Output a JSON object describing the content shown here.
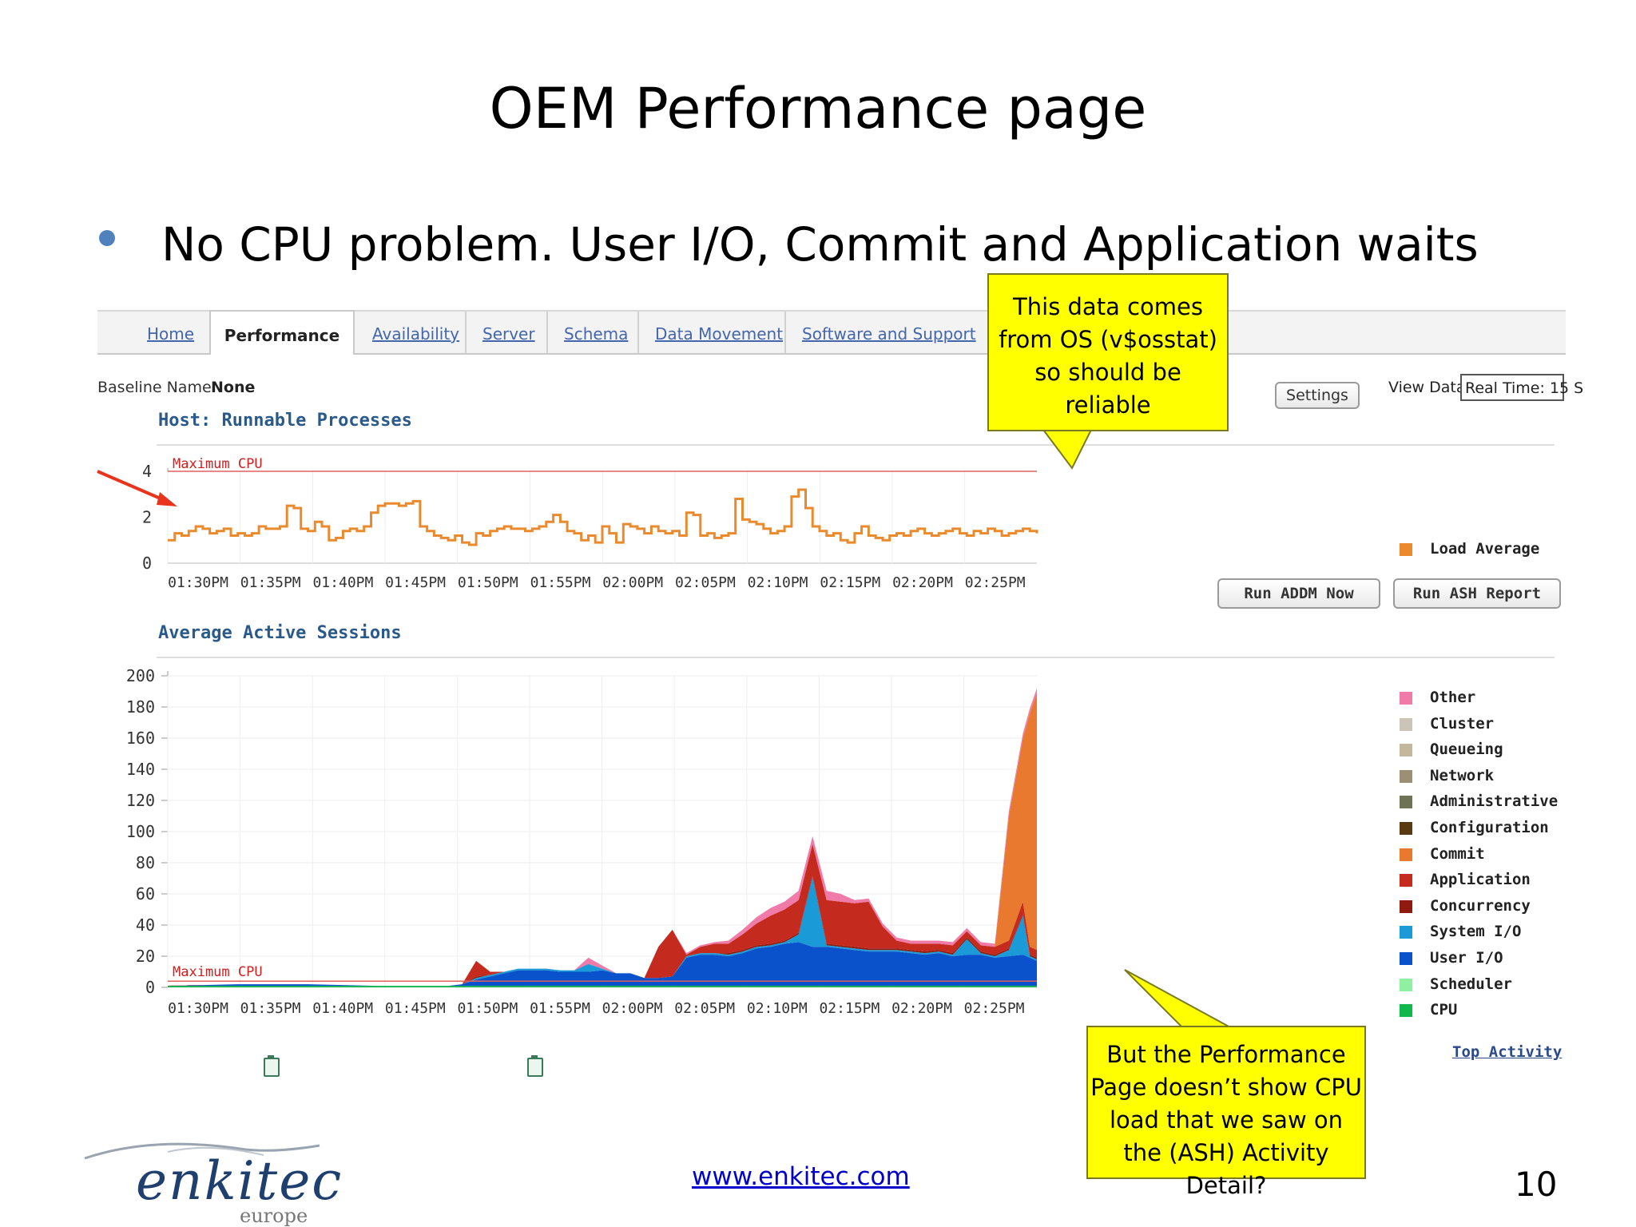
{
  "slide": {
    "title": "OEM Performance page",
    "bullet": "No CPU problem. User I/O, Commit and Application waits",
    "footer_url": "www.enkitec.com",
    "page_number": "10",
    "logo": {
      "name": "enkitec",
      "sub": "europe"
    }
  },
  "oem": {
    "tabs": [
      {
        "label": "Home",
        "active": false
      },
      {
        "label": "Performance",
        "active": true
      },
      {
        "label": "Availability",
        "active": false
      },
      {
        "label": "Server",
        "active": false
      },
      {
        "label": "Schema",
        "active": false
      },
      {
        "label": "Data Movement",
        "active": false
      },
      {
        "label": "Software and Support",
        "active": false
      }
    ],
    "baseline_label": "Baseline Name",
    "baseline_value": "None",
    "settings_button": "Settings",
    "view_data_label": "View Data",
    "view_data_value": "Real Time: 15 S",
    "host_section_title": "Host: Runnable Processes",
    "aas_section_title": "Average Active Sessions",
    "run_addm_button": "Run ADDM Now",
    "run_ash_button": "Run ASH Report",
    "top_activity_link": "Top Activity",
    "host_legend": [
      {
        "label": "Load Average",
        "color": "#ea8a2c"
      }
    ],
    "aas_legend": [
      {
        "label": "Other",
        "color": "#f07aa8"
      },
      {
        "label": "Cluster",
        "color": "#cdc4b8"
      },
      {
        "label": "Queueing",
        "color": "#c4b89c"
      },
      {
        "label": "Network",
        "color": "#9c8f76"
      },
      {
        "label": "Administrative",
        "color": "#6f7356"
      },
      {
        "label": "Configuration",
        "color": "#5a3a10"
      },
      {
        "label": "Commit",
        "color": "#e8792e"
      },
      {
        "label": "Application",
        "color": "#c42a1e"
      },
      {
        "label": "Concurrency",
        "color": "#8e1a10"
      },
      {
        "label": "System I/O",
        "color": "#1a9ad6"
      },
      {
        "label": "User I/O",
        "color": "#0a52cc"
      },
      {
        "label": "Scheduler",
        "color": "#8ef0a0"
      },
      {
        "label": "CPU",
        "color": "#10b84a"
      }
    ]
  },
  "callouts": {
    "top": "This data comes from OS (v$osstat) so should be reliable",
    "bottom": "But the Performance Page doesn’t show CPU load that we saw on the (ASH) Activity Detail?"
  },
  "chart_data": [
    {
      "type": "line",
      "title": "Host: Runnable Processes",
      "x_ticks": [
        "01:30PM",
        "01:35PM",
        "01:40PM",
        "01:45PM",
        "01:50PM",
        "01:55PM",
        "02:00PM",
        "02:05PM",
        "02:10PM",
        "02:15PM",
        "02:20PM",
        "02:25PM"
      ],
      "ylim": [
        0,
        4
      ],
      "y_ticks": [
        0,
        2,
        4
      ],
      "reference_line": {
        "label": "Maximum CPU",
        "value": 4,
        "color": "#e06060"
      },
      "series": [
        {
          "name": "Load Average",
          "color": "#ea8a2c",
          "x": [
            0,
            0.5,
            1,
            1.5,
            2,
            2.5,
            3,
            3.5,
            4,
            4.5,
            5,
            5.5,
            6,
            6.5,
            7,
            7.5,
            8,
            8.5,
            9,
            9.5,
            10,
            10.5,
            11,
            11.5,
            12,
            12.5,
            13,
            13.5,
            14,
            14.5,
            15,
            15.5,
            16,
            16.5,
            17,
            17.5,
            18,
            18.5,
            19,
            19.5,
            20,
            20.5,
            21,
            21.5,
            22,
            22.5,
            23,
            23.5,
            24,
            24.5,
            25,
            25.5,
            26,
            26.5,
            27,
            27.5,
            28,
            28.5,
            29,
            29.5,
            30,
            30.5,
            31,
            31.5,
            32,
            32.5,
            33,
            33.5,
            34,
            34.5,
            35,
            35.5,
            36,
            36.5,
            37,
            37.5,
            38,
            38.5,
            39,
            39.5,
            40,
            40.5,
            41,
            41.5,
            42,
            42.5,
            43,
            43.5,
            44,
            44.5,
            45,
            45.5,
            46,
            46.5,
            47,
            47.5,
            48,
            48.5,
            49,
            49.5,
            50,
            50.5,
            51,
            51.5,
            52,
            52.5,
            53,
            53.5,
            54,
            54.5,
            55,
            55.5,
            56,
            56.5,
            57,
            57.5,
            58,
            58.5,
            59,
            59.5,
            60,
            60.5,
            61,
            61.5,
            62
          ],
          "y": [
            1.0,
            1.3,
            1.2,
            1.4,
            1.6,
            1.5,
            1.3,
            1.4,
            1.5,
            1.2,
            1.3,
            1.2,
            1.3,
            1.6,
            1.5,
            1.5,
            1.6,
            2.5,
            2.4,
            1.5,
            1.4,
            1.8,
            1.6,
            1.0,
            1.1,
            1.4,
            1.5,
            1.4,
            1.6,
            2.2,
            2.5,
            2.6,
            2.6,
            2.5,
            2.6,
            2.7,
            1.6,
            1.4,
            1.2,
            1.1,
            1.0,
            1.2,
            0.9,
            0.8,
            1.3,
            1.2,
            1.4,
            1.5,
            1.6,
            1.5,
            1.5,
            1.4,
            1.5,
            1.6,
            1.8,
            2.1,
            1.8,
            1.4,
            1.3,
            1.0,
            1.2,
            0.9,
            1.6,
            1.3,
            0.9,
            1.7,
            1.6,
            1.5,
            1.3,
            1.6,
            1.4,
            1.3,
            1.4,
            1.2,
            2.2,
            2.1,
            1.2,
            1.3,
            1.1,
            1.2,
            1.3,
            2.8,
            1.9,
            1.8,
            1.7,
            1.5,
            1.3,
            1.4,
            1.6,
            2.9,
            3.2,
            2.4,
            1.6,
            1.4,
            1.2,
            1.3,
            1.0,
            0.9,
            1.3,
            1.6,
            1.2,
            1.1,
            1.0,
            1.2,
            1.3,
            1.2,
            1.4,
            1.5,
            1.3,
            1.2,
            1.3,
            1.4,
            1.5,
            1.3,
            1.2,
            1.4,
            1.3,
            1.5,
            1.4,
            1.2,
            1.3,
            1.4,
            1.5,
            1.4,
            1.3
          ]
        }
      ]
    },
    {
      "type": "area",
      "title": "Average Active Sessions",
      "stacked": true,
      "x_ticks": [
        "01:30PM",
        "01:35PM",
        "01:40PM",
        "01:45PM",
        "01:50PM",
        "01:55PM",
        "02:00PM",
        "02:05PM",
        "02:10PM",
        "02:15PM",
        "02:20PM",
        "02:25PM"
      ],
      "ylim": [
        0,
        200
      ],
      "y_ticks": [
        0,
        20,
        40,
        60,
        80,
        100,
        120,
        140,
        160,
        180,
        200
      ],
      "reference_line": {
        "label": "Maximum CPU",
        "value": 4,
        "color": "#e06060"
      },
      "x": [
        0,
        5,
        10,
        15,
        20,
        21,
        22,
        23,
        24,
        25,
        26,
        27,
        28,
        29,
        30,
        31,
        32,
        33,
        34,
        35,
        36,
        37,
        38,
        39,
        40,
        41,
        42,
        43,
        44,
        45,
        46,
        47,
        48,
        49,
        50,
        51,
        52,
        53,
        54,
        55,
        56,
        57,
        58,
        59,
        60,
        61,
        61.5,
        62
      ],
      "series": [
        {
          "name": "CPU",
          "color": "#10b84a",
          "values": [
            1,
            1,
            1,
            1,
            1,
            1,
            1,
            1,
            1,
            1,
            1,
            1,
            1,
            1,
            1,
            1,
            1,
            1,
            1,
            1,
            1,
            1,
            1,
            1,
            1,
            1,
            1,
            1,
            1,
            1,
            1,
            1,
            1,
            1,
            1,
            1,
            1,
            1,
            1,
            1,
            1,
            1,
            1,
            1,
            1,
            1,
            1,
            1
          ]
        },
        {
          "name": "User I/O",
          "color": "#0a52cc",
          "values": [
            0,
            1,
            1,
            0,
            0,
            1,
            4,
            6,
            8,
            10,
            10,
            10,
            9,
            9,
            9,
            10,
            8,
            8,
            5,
            5,
            6,
            18,
            20,
            20,
            19,
            21,
            24,
            25,
            27,
            28,
            25,
            25,
            24,
            23,
            22,
            22,
            22,
            21,
            20,
            21,
            19,
            20,
            20,
            18,
            19,
            20,
            18,
            16
          ]
        },
        {
          "name": "System I/O",
          "color": "#1a9ad6",
          "values": [
            0,
            0,
            0,
            0,
            0,
            0,
            1,
            1,
            1,
            1,
            1,
            1,
            1,
            1,
            5,
            1,
            0,
            0,
            0,
            0,
            0,
            1,
            1,
            1,
            1,
            1,
            1,
            1,
            1,
            5,
            45,
            1,
            1,
            1,
            1,
            1,
            1,
            1,
            1,
            1,
            1,
            10,
            1,
            1,
            4,
            25,
            1,
            1
          ]
        },
        {
          "name": "Concurrency",
          "color": "#8e1a10",
          "values": [
            0,
            0,
            0,
            0,
            0,
            0,
            1,
            0,
            0,
            0,
            0,
            0,
            0,
            0,
            0,
            0,
            0,
            0,
            0,
            0,
            0,
            0,
            0,
            0,
            1,
            1,
            1,
            1,
            1,
            1,
            1,
            1,
            1,
            1,
            1,
            1,
            1,
            1,
            1,
            1,
            1,
            1,
            1,
            1,
            1,
            1,
            1,
            1
          ]
        },
        {
          "name": "Application",
          "color": "#c42a1e",
          "values": [
            0,
            0,
            0,
            0,
            0,
            0,
            10,
            2,
            0,
            0,
            0,
            0,
            0,
            0,
            0,
            0,
            0,
            0,
            0,
            20,
            30,
            1,
            4,
            6,
            6,
            10,
            14,
            18,
            20,
            21,
            20,
            28,
            28,
            28,
            30,
            14,
            5,
            4,
            5,
            4,
            5,
            4,
            4,
            5,
            5,
            8,
            5,
            5
          ]
        },
        {
          "name": "Commit",
          "color": "#e8792e",
          "values": [
            0,
            0,
            0,
            0,
            0,
            0,
            0,
            0,
            0,
            0,
            0,
            0,
            0,
            0,
            0,
            0,
            0,
            0,
            0,
            0,
            0,
            0,
            0,
            0,
            0,
            0,
            0,
            0,
            0,
            0,
            0,
            0,
            0,
            0,
            0,
            0,
            0,
            0,
            0,
            0,
            0,
            0,
            0,
            0,
            80,
            105,
            150,
            165
          ]
        },
        {
          "name": "Other",
          "color": "#f07aa8",
          "values": [
            0,
            0,
            0,
            0,
            0,
            0,
            0,
            0,
            0,
            0,
            0,
            0,
            0,
            0,
            4,
            2,
            0,
            0,
            0,
            0,
            0,
            1,
            1,
            1,
            2,
            3,
            4,
            5,
            5,
            6,
            5,
            6,
            5,
            2,
            2,
            2,
            2,
            2,
            2,
            2,
            2,
            2,
            2,
            2,
            3,
            3,
            3,
            3
          ]
        }
      ]
    }
  ]
}
